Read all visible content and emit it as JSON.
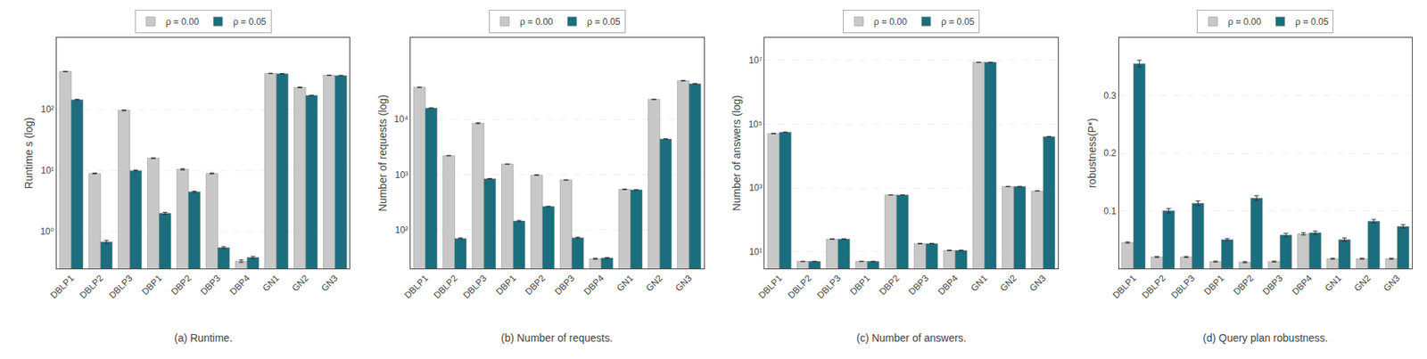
{
  "chart_data": [
    {
      "type": "bar",
      "title": "(a) Runtime.",
      "ylabel": "Runtime s (log)",
      "categories": [
        "DBLP1",
        "DBLP2",
        "DBLP3",
        "DBP1",
        "DBP2",
        "DBP3",
        "DBP4",
        "GN1",
        "GN2",
        "GN3"
      ],
      "series": [
        {
          "name": "ρ = 0.00",
          "color": "#c8c8c8",
          "values": [
            420,
            9.0,
            97,
            16,
            10.5,
            9.0,
            0.33,
            390,
            230,
            365
          ],
          "errors": [
            3,
            0.15,
            1.5,
            0.25,
            0.25,
            0.18,
            0.015,
            3,
            3,
            2.5
          ]
        },
        {
          "name": "ρ = 0.05",
          "color": "#1a6e7e",
          "values": [
            145,
            0.68,
            10,
            2.0,
            4.5,
            0.55,
            0.38,
            385,
            170,
            360
          ],
          "errors": [
            2,
            0.04,
            0.22,
            0.08,
            0.1,
            0.02,
            0.015,
            3,
            2,
            2
          ]
        }
      ],
      "ylim": [
        0.25,
        1500
      ],
      "yticks": [
        {
          "value": 1,
          "label": "10⁰"
        },
        {
          "value": 10,
          "label": "10¹"
        },
        {
          "value": 100,
          "label": "10²"
        }
      ],
      "log": "y",
      "grid": true,
      "legend": "top"
    },
    {
      "type": "bar",
      "title": "(b) Number of requests.",
      "ylabel": "Number of requests (log)",
      "categories": [
        "DBLP1",
        "DBLP2",
        "DBLP3",
        "DBP1",
        "DBP2",
        "DBP3",
        "DBP4",
        "GN1",
        "GN2",
        "GN3"
      ],
      "series": [
        {
          "name": "ρ = 0.00",
          "color": "#c8c8c8",
          "values": [
            38000,
            2200,
            8500,
            1550,
            980,
            800,
            30,
            540,
            23000,
            50000
          ],
          "errors": [
            300,
            22,
            160,
            15,
            10,
            7,
            0.7,
            6,
            250,
            400
          ]
        },
        {
          "name": "ρ = 0.05",
          "color": "#1a6e7e",
          "values": [
            16000,
            70,
            840,
            145,
            265,
            72,
            31,
            530,
            4400,
            44000
          ],
          "errors": [
            150,
            2,
            10,
            3.5,
            3.5,
            2,
            0.7,
            6,
            65,
            350
          ]
        }
      ],
      "ylim": [
        20,
        300000
      ],
      "yticks": [
        {
          "value": 100,
          "label": "10²"
        },
        {
          "value": 1000,
          "label": "10³"
        },
        {
          "value": 10000,
          "label": "10⁴"
        }
      ],
      "log": "y",
      "grid": true,
      "legend": "top"
    },
    {
      "type": "bar",
      "title": "(c) Number of answers.",
      "ylabel": "Number of answers (log)",
      "categories": [
        "DBLP1",
        "DBLP2",
        "DBLP3",
        "DBP1",
        "DBP2",
        "DBP3",
        "DBP4",
        "GN1",
        "GN2",
        "GN3"
      ],
      "series": [
        {
          "name": "ρ = 0.00",
          "color": "#c8c8c8",
          "values": [
            50000,
            5,
            25,
            5,
            600,
            18,
            11,
            8500000,
            1100,
            800
          ],
          "errors": [
            900,
            0.08,
            0.4,
            0.08,
            8,
            0.35,
            0.22,
            120000,
            15,
            10
          ]
        },
        {
          "name": "ρ = 0.05",
          "color": "#1a6e7e",
          "values": [
            55000,
            5,
            25,
            5,
            600,
            18,
            11,
            8500000,
            1100,
            40000
          ],
          "errors": [
            900,
            0.08,
            0.4,
            0.08,
            8,
            0.35,
            0.22,
            120000,
            15,
            600
          ]
        }
      ],
      "ylim": [
        3,
        50000000
      ],
      "yticks": [
        {
          "value": 10,
          "label": "10¹"
        },
        {
          "value": 1000,
          "label": "10³"
        },
        {
          "value": 100000,
          "label": "10⁵"
        },
        {
          "value": 10000000,
          "label": "10⁷"
        }
      ],
      "log": "y",
      "grid": true,
      "legend": "top"
    },
    {
      "type": "bar",
      "title": "(d) Query plan robustness.",
      "ylabel": "robustness(P*)",
      "categories": [
        "DBLP1",
        "DBLP2",
        "DBLP3",
        "DBP1",
        "DBP2",
        "DBP3",
        "DBP4",
        "GN1",
        "GN2",
        "GN3"
      ],
      "series": [
        {
          "name": "ρ = 0.00",
          "color": "#c8c8c8",
          "values": [
            0.045,
            0.02,
            0.02,
            0.012,
            0.011,
            0.012,
            0.06,
            0.017,
            0.017,
            0.017
          ],
          "errors": [
            0.001,
            0.001,
            0.001,
            0.001,
            0.001,
            0.001,
            0.002,
            0.001,
            0.001,
            0.001
          ]
        },
        {
          "name": "ρ = 0.05",
          "color": "#1a6e7e",
          "values": [
            0.355,
            0.1,
            0.113,
            0.05,
            0.122,
            0.058,
            0.062,
            0.05,
            0.082,
            0.073
          ],
          "errors": [
            0.006,
            0.004,
            0.004,
            0.002,
            0.004,
            0.003,
            0.003,
            0.003,
            0.003,
            0.003
          ]
        }
      ],
      "ylim": [
        0.0,
        0.4
      ],
      "yticks": [
        0.1,
        0.2,
        0.3
      ],
      "grid": true,
      "legend": "top"
    }
  ]
}
